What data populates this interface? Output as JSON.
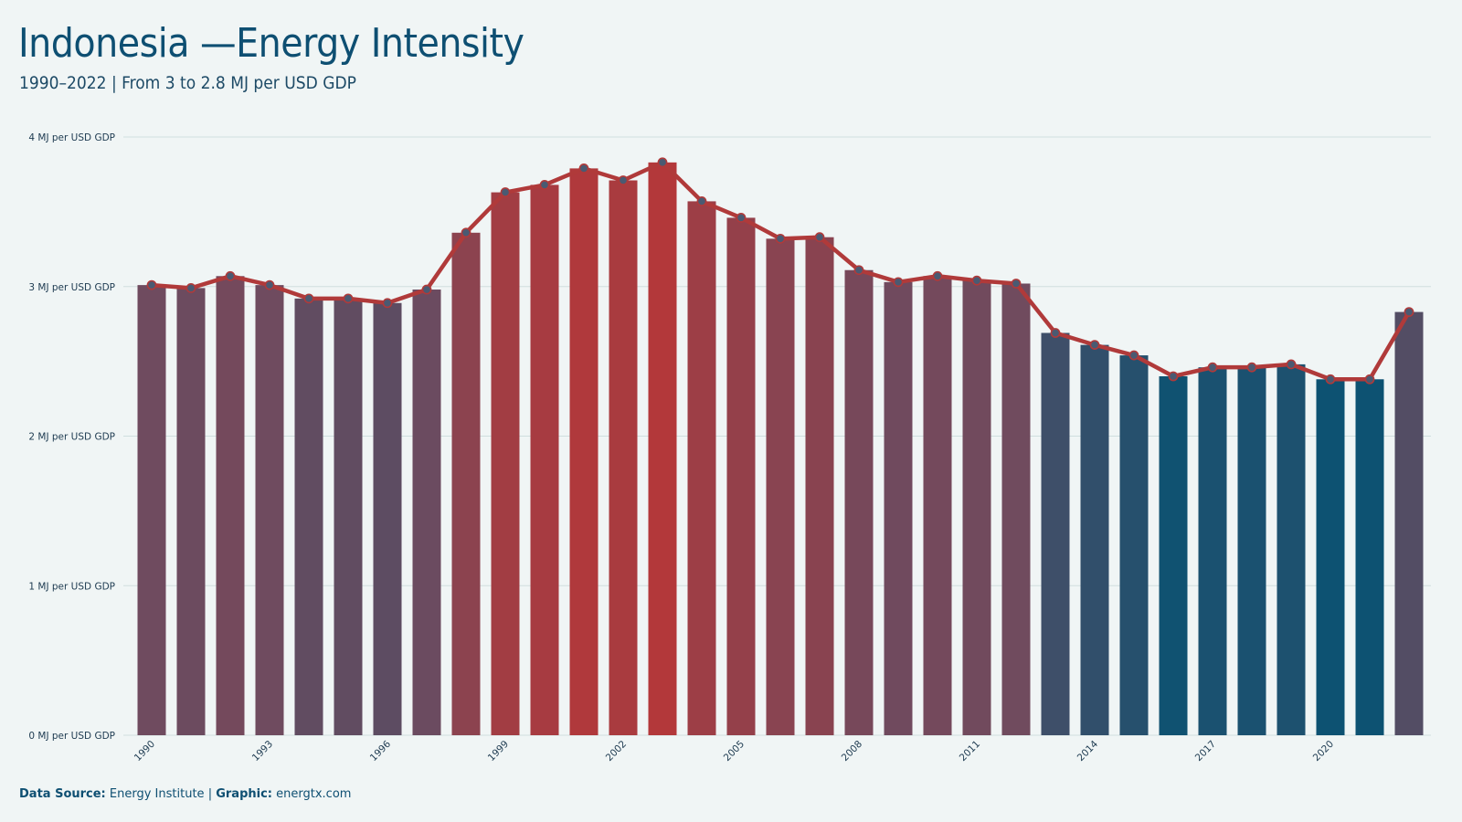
{
  "header": {
    "title": "Indonesia —Energy Intensity",
    "subtitle": "1990–2022 | From 3 to 2.8 MJ per USD GDP"
  },
  "footer": {
    "source_label": "Data Source:",
    "source_value": "Energy Institute",
    "separator": "|",
    "graphic_label": "Graphic:",
    "graphic_value": "energtx.com"
  },
  "colors": {
    "background": "#f0f5f5",
    "line": "#b03a3a",
    "bar_high": "#b3383a",
    "bar_mid": "#6e4b5f",
    "bar_low": "#0d5272",
    "title": "#0e4f72",
    "grid": "#cfdede"
  },
  "chart_data": {
    "type": "bar",
    "overlay": "line",
    "unit_suffix": "MJ per USD GDP",
    "ylim": [
      0,
      4
    ],
    "yticks": [
      0,
      1,
      2,
      3,
      4
    ],
    "ytick_labels": [
      "0 MJ per USD GDP",
      "1 MJ per USD GDP",
      "2 MJ per USD GDP",
      "3 MJ per USD GDP",
      "4 MJ per USD GDP"
    ],
    "grid": true,
    "x": [
      1990,
      1991,
      1992,
      1993,
      1994,
      1995,
      1996,
      1997,
      1998,
      1999,
      2000,
      2001,
      2002,
      2003,
      2004,
      2005,
      2006,
      2007,
      2008,
      2009,
      2010,
      2011,
      2012,
      2013,
      2014,
      2015,
      2016,
      2017,
      2018,
      2019,
      2020,
      2021,
      2022
    ],
    "xtick_labels": [
      "1990",
      "1993",
      "1996",
      "1999",
      "2002",
      "2005",
      "2008",
      "2011",
      "2014",
      "2017",
      "2020"
    ],
    "values": [
      3.01,
      2.99,
      3.07,
      3.01,
      2.92,
      2.92,
      2.89,
      2.98,
      3.36,
      3.63,
      3.68,
      3.79,
      3.71,
      3.83,
      3.57,
      3.46,
      3.32,
      3.33,
      3.11,
      3.03,
      3.07,
      3.04,
      3.02,
      2.69,
      2.61,
      2.54,
      2.4,
      2.46,
      2.46,
      2.48,
      2.38,
      2.38,
      2.83
    ]
  }
}
